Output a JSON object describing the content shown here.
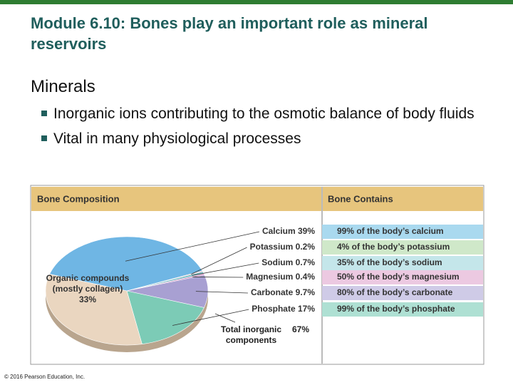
{
  "title": "Module 6.10: Bones play an important role as mineral reservoirs",
  "heading": "Minerals",
  "bullets": [
    "Inorganic ions contributing to the osmotic balance of body fluids",
    "Vital in many physiological processes"
  ],
  "chart_data": {
    "type": "pie",
    "title": "Bone Composition",
    "categories": [
      "Calcium",
      "Potassium",
      "Sodium",
      "Magnesium",
      "Carbonate",
      "Phosphate",
      "Organic compounds (mostly collagen)"
    ],
    "values": [
      39,
      0.2,
      0.7,
      0.4,
      9.7,
      17,
      33
    ],
    "value_labels": [
      "39%",
      "0.2%",
      "0.7%",
      "0.4%",
      "9.7%",
      "17%",
      "33%"
    ],
    "colors": [
      "#6fb6e4",
      "#d9534f",
      "#7fc1c9",
      "#c77fb8",
      "#a8a0d2",
      "#7ccbb6",
      "#ead6c0"
    ],
    "annotation": {
      "text": "Total inorganic components",
      "value": 67,
      "value_label": "67%"
    }
  },
  "table": {
    "header": "Bone Contains",
    "rows": [
      "99% of the body’s calcium",
      "4% of the body’s potassium",
      "35% of the body’s sodium",
      "50% of the body’s magnesium",
      "80% of the body’s carbonate",
      "99% of the body’s phosphate"
    ],
    "colors": [
      "#a9d9ef",
      "#cfe8c9",
      "#c4e6ea",
      "#ecc9e1",
      "#cfcbe7",
      "#aee0d3"
    ]
  },
  "footer": "© 2016 Pearson Education, Inc."
}
